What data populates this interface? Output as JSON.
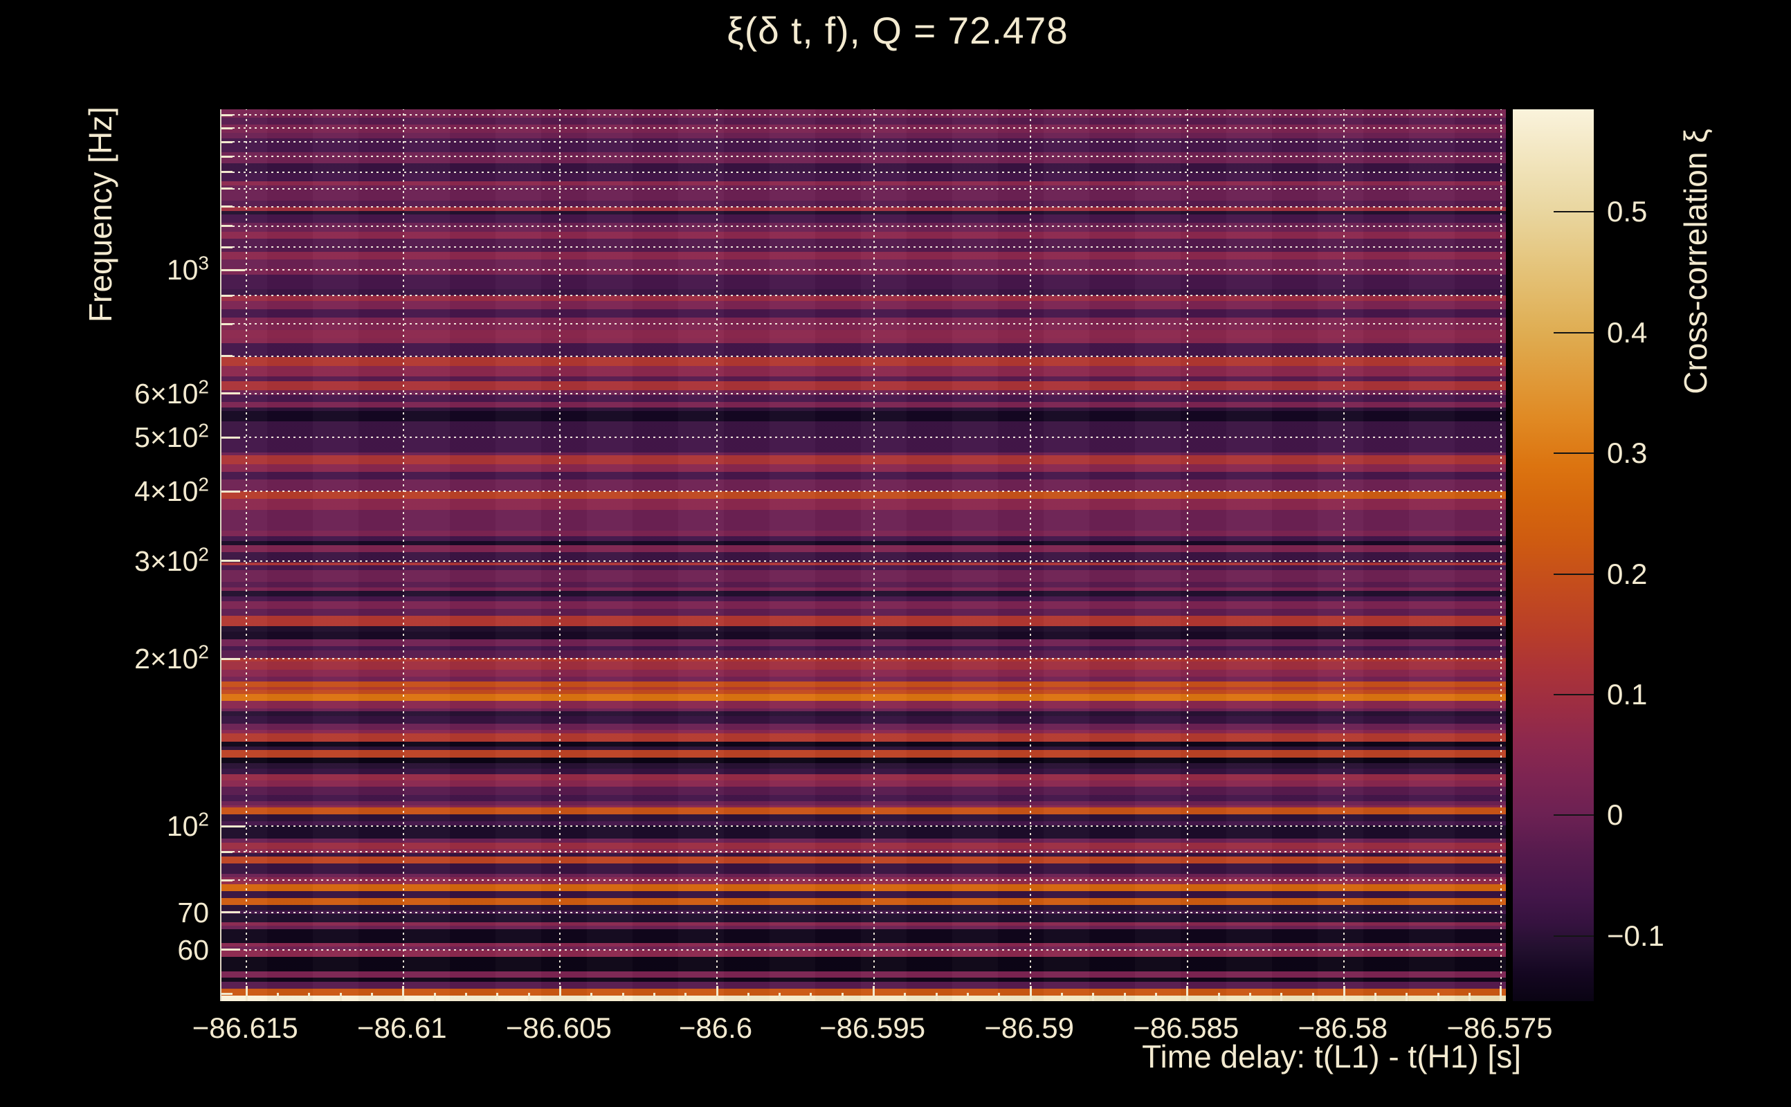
{
  "figure": {
    "background": "#000000",
    "text_color": "#f3ead0",
    "grid_color": "rgba(252,246,230,0.92)"
  },
  "chart_data": {
    "type": "heatmap",
    "title": "ξ(δ t, f), Q = 72.478",
    "xlabel": "Time delay: t(L1) - t(H1) [s]",
    "ylabel": "Frequency [Hz]",
    "colorbar_label": "Cross-correlation ξ",
    "grid": "dotted",
    "x_axis": {
      "min": -86.6158,
      "max": -86.5748,
      "ticks": [
        {
          "v": -86.615,
          "label": "−86.615"
        },
        {
          "v": -86.61,
          "label": "−86.61"
        },
        {
          "v": -86.605,
          "label": "−86.605"
        },
        {
          "v": -86.6,
          "label": "−86.6"
        },
        {
          "v": -86.595,
          "label": "−86.595"
        },
        {
          "v": -86.59,
          "label": "−86.59"
        },
        {
          "v": -86.585,
          "label": "−86.585"
        },
        {
          "v": -86.58,
          "label": "−86.58"
        },
        {
          "v": -86.575,
          "label": "−86.575"
        }
      ],
      "minor_step": 0.001
    },
    "y_axis": {
      "scale": "log",
      "min": 48.5,
      "max": 1945,
      "ticks": [
        {
          "f": 1000,
          "pre": "10",
          "exp": "3"
        },
        {
          "f": 600,
          "pre": "6×10",
          "exp": "2"
        },
        {
          "f": 500,
          "pre": "5×10",
          "exp": "2"
        },
        {
          "f": 400,
          "pre": "4×10",
          "exp": "2"
        },
        {
          "f": 300,
          "pre": "3×10",
          "exp": "2"
        },
        {
          "f": 200,
          "pre": "2×10",
          "exp": "2"
        },
        {
          "f": 100,
          "pre": "10",
          "exp": "2"
        },
        {
          "f": 70,
          "pre": "70",
          "exp": ""
        },
        {
          "f": 60,
          "pre": "60",
          "exp": ""
        }
      ],
      "minor_gridlines": [
        60,
        70,
        80,
        90,
        100,
        200,
        300,
        400,
        500,
        600,
        700,
        800,
        900,
        1000,
        1100,
        1200,
        1300,
        1400,
        1500,
        1600,
        1700,
        1800,
        1900
      ],
      "minor_ticks": [
        50,
        60,
        70,
        80,
        90,
        100,
        200,
        300,
        400,
        500,
        600,
        700,
        800,
        900,
        1000,
        1100,
        1200,
        1300,
        1400,
        1500,
        1600,
        1700,
        1800,
        1900
      ]
    },
    "z_axis": {
      "min": -0.154,
      "max": 0.585,
      "ticks": [
        {
          "v": 0.5,
          "label": "0.5"
        },
        {
          "v": 0.4,
          "label": "0.4"
        },
        {
          "v": 0.3,
          "label": "0.3"
        },
        {
          "v": 0.2,
          "label": "0.2"
        },
        {
          "v": 0.1,
          "label": "0.1"
        },
        {
          "v": 0,
          "label": "0"
        },
        {
          "v": -0.1,
          "label": "−0.1"
        }
      ]
    },
    "colormap_stops": [
      [
        -0.154,
        "#0a0413"
      ],
      [
        -0.13,
        "#150722"
      ],
      [
        -0.11,
        "#23102f"
      ],
      [
        -0.09,
        "#35123f"
      ],
      [
        -0.065,
        "#44164a"
      ],
      [
        -0.03,
        "#571b4e"
      ],
      [
        0,
        "#6c2153"
      ],
      [
        0.03,
        "#7c2452"
      ],
      [
        0.06,
        "#8c284e"
      ],
      [
        0.09,
        "#9c2d43"
      ],
      [
        0.12,
        "#ab3338"
      ],
      [
        0.15,
        "#b83d2a"
      ],
      [
        0.19,
        "#c44c1d"
      ],
      [
        0.23,
        "#cf5c10"
      ],
      [
        0.26,
        "#d5670d"
      ],
      [
        0.29,
        "#dc7410"
      ],
      [
        0.33,
        "#e08a24"
      ],
      [
        0.4,
        "#dfad52"
      ],
      [
        0.45,
        "#e4c277"
      ],
      [
        0.5,
        "#e9d69f"
      ],
      [
        0.55,
        "#f3e7c2"
      ],
      [
        0.585,
        "#faf3dc"
      ]
    ],
    "rows": [
      [
        1945,
        1880,
        0.025
      ],
      [
        1880,
        1827,
        -0.03
      ],
      [
        1827,
        1765,
        0.03
      ],
      [
        1765,
        1725,
        0.0
      ],
      [
        1725,
        1630,
        -0.06
      ],
      [
        1630,
        1556,
        0.01
      ],
      [
        1556,
        1495,
        -0.085
      ],
      [
        1495,
        1445,
        -0.065
      ],
      [
        1445,
        1420,
        0.06
      ],
      [
        1420,
        1334,
        0.0
      ],
      [
        1334,
        1297,
        -0.03
      ],
      [
        1297,
        1278,
        0.1
      ],
      [
        1278,
        1260,
        -0.11
      ],
      [
        1260,
        1217,
        -0.06
      ],
      [
        1217,
        1173,
        0.0
      ],
      [
        1173,
        1140,
        0.06
      ],
      [
        1140,
        1077,
        -0.035
      ],
      [
        1077,
        1046,
        0.06
      ],
      [
        1046,
        1008,
        0.0
      ],
      [
        1008,
        980,
        0.03
      ],
      [
        980,
        925,
        -0.06
      ],
      [
        925,
        899,
        -0.08
      ],
      [
        899,
        879,
        0.09
      ],
      [
        879,
        849,
        0.03
      ],
      [
        849,
        821,
        -0.06
      ],
      [
        821,
        780,
        0.035
      ],
      [
        780,
        753,
        0.06
      ],
      [
        753,
        738,
        0.05
      ],
      [
        738,
        698,
        -0.065
      ],
      [
        698,
        672,
        0.135
      ],
      [
        672,
        644,
        0.06
      ],
      [
        644,
        631,
        -0.03
      ],
      [
        631,
        608,
        0.12
      ],
      [
        608,
        596,
        0.005
      ],
      [
        596,
        579,
        -0.06
      ],
      [
        579,
        566,
        0.03
      ],
      [
        566,
        558,
        -0.1
      ],
      [
        558,
        535,
        -0.13
      ],
      [
        535,
        502,
        -0.08
      ],
      [
        502,
        470,
        -0.067
      ],
      [
        470,
        464,
        0.0
      ],
      [
        464,
        448,
        0.125
      ],
      [
        448,
        434,
        0.055
      ],
      [
        434,
        420,
        -0.06
      ],
      [
        420,
        400,
        0.005
      ],
      [
        400,
        388,
        0.19,
        1
      ],
      [
        388,
        371,
        0.06
      ],
      [
        371,
        340,
        0.0
      ],
      [
        340,
        332,
        0.03
      ],
      [
        332,
        326,
        -0.066
      ],
      [
        326,
        320,
        -0.125
      ],
      [
        320,
        311,
        0.035
      ],
      [
        311,
        298,
        -0.08
      ],
      [
        298,
        295,
        0.12
      ],
      [
        295,
        289,
        -0.06
      ],
      [
        289,
        275,
        0.005
      ],
      [
        275,
        269,
        -0.028
      ],
      [
        269,
        265,
        0.03
      ],
      [
        265,
        259,
        -0.112
      ],
      [
        259,
        254,
        -0.06
      ],
      [
        254,
        246,
        0.03
      ],
      [
        246,
        239,
        -0.02
      ],
      [
        239,
        234,
        0.135
      ],
      [
        234,
        229,
        0.135
      ],
      [
        229,
        224,
        -0.113
      ],
      [
        224,
        217,
        -0.125
      ],
      [
        217,
        211,
        0.01
      ],
      [
        211,
        207,
        -0.066
      ],
      [
        207,
        201,
        -0.028
      ],
      [
        201,
        198,
        0.135
      ],
      [
        198,
        191,
        0.1
      ],
      [
        191,
        186,
        0.055
      ],
      [
        186,
        182,
        0.012
      ],
      [
        182,
        178,
        0.2
      ],
      [
        178,
        176,
        0.14
      ],
      [
        176,
        173,
        0.185
      ],
      [
        173,
        168,
        0.29
      ],
      [
        168,
        163,
        0.055
      ],
      [
        163,
        161,
        0.0
      ],
      [
        161,
        158,
        -0.105
      ],
      [
        158,
        153,
        -0.09
      ],
      [
        153,
        149,
        0.0
      ],
      [
        149,
        147,
        0.055
      ],
      [
        147,
        142,
        0.14
      ],
      [
        142,
        139,
        -0.145
      ],
      [
        139,
        137,
        -0.1
      ],
      [
        137,
        133,
        0.165
      ],
      [
        133,
        130,
        -0.152
      ],
      [
        130,
        127,
        -0.105
      ],
      [
        127,
        124,
        -0.09
      ],
      [
        124,
        121,
        0.08
      ],
      [
        121,
        118,
        0.055
      ],
      [
        118,
        114,
        -0.028
      ],
      [
        114,
        111,
        -0.065
      ],
      [
        111,
        109,
        0.0
      ],
      [
        109,
        108,
        0.055
      ],
      [
        108,
        105,
        0.21
      ],
      [
        105,
        102,
        -0.1
      ],
      [
        102,
        100.5,
        -0.065
      ],
      [
        100.5,
        95,
        -0.118
      ],
      [
        95,
        93.5,
        0.0
      ],
      [
        93.5,
        91,
        0.09
      ],
      [
        91,
        89.6,
        0.06
      ],
      [
        89.6,
        88.3,
        -0.09
      ],
      [
        88.3,
        85.8,
        0.17
      ],
      [
        85.8,
        82.2,
        -0.087
      ],
      [
        82.2,
        81,
        0.0
      ],
      [
        81,
        79.9,
        0.055
      ],
      [
        79.9,
        78.7,
        0.075
      ],
      [
        78.7,
        76.4,
        0.26
      ],
      [
        76.4,
        74.3,
        -0.087
      ],
      [
        74.3,
        72.2,
        0.23
      ],
      [
        72.2,
        70.6,
        -0.105
      ],
      [
        70.6,
        69.6,
        -0.067
      ],
      [
        69.6,
        67.3,
        -0.115
      ],
      [
        67.3,
        66.3,
        0.055
      ],
      [
        66.3,
        65.4,
        0.0
      ],
      [
        65.4,
        61.7,
        -0.14
      ],
      [
        61.7,
        60.8,
        0.055
      ],
      [
        60.8,
        59.9,
        0.005
      ],
      [
        59.9,
        58.2,
        0.06
      ],
      [
        58.2,
        54.9,
        -0.15
      ],
      [
        54.9,
        53.4,
        0.03
      ],
      [
        53.4,
        52.6,
        -0.146
      ],
      [
        52.6,
        51.1,
        -0.03
      ],
      [
        51.1,
        49.6,
        0.22
      ],
      [
        49.6,
        48.5,
        0.565,
        -1
      ]
    ]
  }
}
